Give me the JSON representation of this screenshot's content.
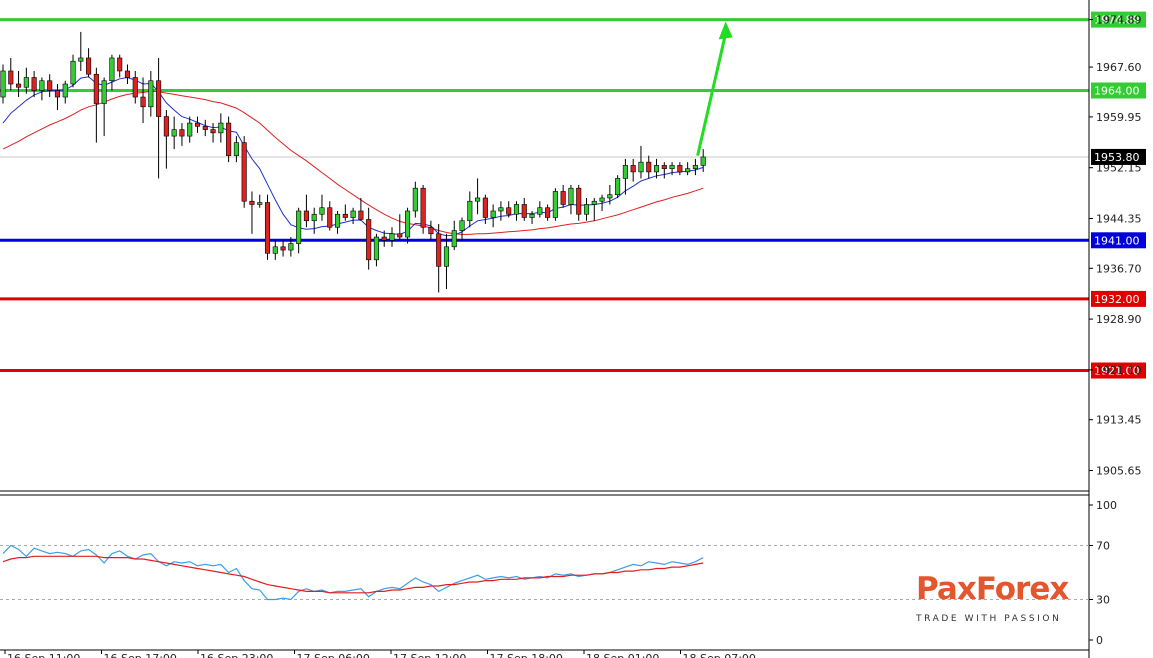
{
  "brand": {
    "name_left": "Pa",
    "name_x": "x",
    "name_right": "Forex",
    "tagline": "TRADE WITH PASSION"
  },
  "chart_data": [
    {
      "type": "candlestick",
      "ylim": [
        1902.5,
        1977.9
      ],
      "y_ticks": [
        "1974.89",
        "1967.60",
        "1959.95",
        "1952.15",
        "1944.35",
        "1936.70",
        "1928.90",
        "1921.10",
        "1913.45",
        "1905.65"
      ],
      "x_ticks": [
        "16 Sep 11:00",
        "16 Sep 17:00",
        "16 Sep 23:00",
        "17 Sep 06:00",
        "17 Sep 12:00",
        "17 Sep 18:00",
        "18 Sep 01:00",
        "18 Sep 07:00"
      ],
      "current_price": "1953.80",
      "levels": [
        {
          "value": 1974.89,
          "label": "1974.89",
          "color": "#33cc33",
          "role": "resistance"
        },
        {
          "value": 1964.0,
          "label": "1964.00",
          "color": "#33cc33",
          "role": "resistance"
        },
        {
          "value": 1941.0,
          "label": "1941.00",
          "color": "#0000dd",
          "role": "pivot"
        },
        {
          "value": 1932.0,
          "label": "1932.00",
          "color": "#e00000",
          "role": "support"
        },
        {
          "value": 1921.0,
          "label": "1921.00",
          "color": "#e00000",
          "role": "support"
        }
      ],
      "arrow": {
        "from_index": 88,
        "from_value": 1954.0,
        "to_value": 1974.0,
        "color": "#22dd22"
      },
      "candles": [
        [
          1963.0,
          1968.0,
          1962.0,
          1967.0
        ],
        [
          1967.0,
          1969.0,
          1964.0,
          1965.0
        ],
        [
          1965.0,
          1967.0,
          1963.0,
          1964.5
        ],
        [
          1964.5,
          1967.5,
          1963.5,
          1966.0
        ],
        [
          1966.0,
          1967.0,
          1963.0,
          1964.0
        ],
        [
          1964.0,
          1966.0,
          1962.5,
          1965.5
        ],
        [
          1965.5,
          1966.5,
          1963.0,
          1964.0
        ],
        [
          1964.0,
          1965.0,
          1961.0,
          1963.0
        ],
        [
          1963.0,
          1965.5,
          1962.0,
          1965.0
        ],
        [
          1965.0,
          1969.5,
          1964.5,
          1968.5
        ],
        [
          1968.5,
          1973.0,
          1967.0,
          1969.0
        ],
        [
          1969.0,
          1970.5,
          1966.0,
          1966.5
        ],
        [
          1966.5,
          1967.5,
          1956.0,
          1962.0
        ],
        [
          1962.0,
          1966.0,
          1957.0,
          1965.5
        ],
        [
          1965.5,
          1969.5,
          1964.0,
          1969.0
        ],
        [
          1969.0,
          1969.5,
          1966.0,
          1967.0
        ],
        [
          1967.0,
          1968.0,
          1965.0,
          1966.0
        ],
        [
          1966.0,
          1967.0,
          1962.0,
          1963.0
        ],
        [
          1963.0,
          1966.0,
          1959.0,
          1961.5
        ],
        [
          1961.5,
          1967.0,
          1960.0,
          1965.5
        ],
        [
          1965.5,
          1969.0,
          1950.5,
          1960.0
        ],
        [
          1960.0,
          1961.0,
          1952.0,
          1957.0
        ],
        [
          1957.0,
          1960.0,
          1955.0,
          1958.0
        ],
        [
          1958.0,
          1959.0,
          1955.5,
          1957.0
        ],
        [
          1957.0,
          1960.0,
          1956.0,
          1959.0
        ],
        [
          1959.0,
          1960.0,
          1957.5,
          1958.5
        ],
        [
          1958.5,
          1959.5,
          1957.0,
          1958.0
        ],
        [
          1958.0,
          1959.0,
          1956.0,
          1957.5
        ],
        [
          1957.5,
          1960.5,
          1956.0,
          1959.0
        ],
        [
          1959.0,
          1960.0,
          1953.0,
          1954.0
        ],
        [
          1954.0,
          1957.0,
          1953.0,
          1956.0
        ],
        [
          1956.0,
          1957.0,
          1946.0,
          1947.0
        ],
        [
          1947.0,
          1948.5,
          1942.0,
          1946.5
        ],
        [
          1946.5,
          1948.0,
          1946.0,
          1946.8
        ],
        [
          1946.8,
          1948.0,
          1938.0,
          1939.0
        ],
        [
          1939.0,
          1941.0,
          1938.0,
          1940.0
        ],
        [
          1940.0,
          1941.0,
          1938.5,
          1939.5
        ],
        [
          1939.5,
          1941.5,
          1938.5,
          1940.5
        ],
        [
          1940.5,
          1946.0,
          1939.0,
          1945.5
        ],
        [
          1945.5,
          1948.0,
          1943.0,
          1944.0
        ],
        [
          1944.0,
          1946.0,
          1942.0,
          1945.0
        ],
        [
          1945.0,
          1948.0,
          1944.0,
          1946.0
        ],
        [
          1946.0,
          1947.0,
          1942.5,
          1943.0
        ],
        [
          1943.0,
          1945.5,
          1942.0,
          1945.0
        ],
        [
          1945.0,
          1946.5,
          1944.0,
          1944.5
        ],
        [
          1944.5,
          1946.0,
          1943.5,
          1945.5
        ],
        [
          1945.5,
          1947.5,
          1944.0,
          1944.2
        ],
        [
          1944.2,
          1946.0,
          1936.5,
          1938.0
        ],
        [
          1938.0,
          1942.0,
          1937.0,
          1941.5
        ],
        [
          1941.5,
          1942.5,
          1940.0,
          1941.0
        ],
        [
          1941.0,
          1943.0,
          1940.0,
          1942.0
        ],
        [
          1942.0,
          1945.0,
          1941.0,
          1941.5
        ],
        [
          1941.5,
          1946.0,
          1940.5,
          1945.5
        ],
        [
          1945.5,
          1950.0,
          1944.5,
          1949.0
        ],
        [
          1949.0,
          1949.5,
          1942.0,
          1943.0
        ],
        [
          1943.0,
          1944.0,
          1941.0,
          1942.0
        ],
        [
          1942.0,
          1943.5,
          1933.0,
          1937.0
        ],
        [
          1937.0,
          1942.0,
          1933.5,
          1940.0
        ],
        [
          1940.0,
          1944.0,
          1939.5,
          1942.5
        ],
        [
          1942.5,
          1944.5,
          1941.0,
          1944.0
        ],
        [
          1944.0,
          1948.5,
          1943.0,
          1947.0
        ],
        [
          1947.0,
          1950.5,
          1945.0,
          1947.5
        ],
        [
          1947.5,
          1948.0,
          1943.5,
          1944.5
        ],
        [
          1944.5,
          1946.5,
          1943.0,
          1945.5
        ],
        [
          1945.5,
          1947.0,
          1944.0,
          1946.0
        ],
        [
          1946.0,
          1947.0,
          1944.5,
          1945.0
        ],
        [
          1945.0,
          1947.0,
          1944.0,
          1946.5
        ],
        [
          1946.5,
          1947.5,
          1944.0,
          1944.5
        ],
        [
          1944.5,
          1945.5,
          1943.5,
          1945.0
        ],
        [
          1945.0,
          1947.0,
          1944.5,
          1946.0
        ],
        [
          1946.0,
          1946.5,
          1944.0,
          1944.5
        ],
        [
          1944.5,
          1949.0,
          1944.0,
          1948.5
        ],
        [
          1948.5,
          1949.5,
          1946.0,
          1946.5
        ],
        [
          1946.5,
          1949.5,
          1945.0,
          1949.0
        ],
        [
          1949.0,
          1949.5,
          1944.0,
          1945.0
        ],
        [
          1945.0,
          1947.5,
          1944.0,
          1946.5
        ],
        [
          1946.5,
          1947.5,
          1944.0,
          1947.0
        ],
        [
          1947.0,
          1948.0,
          1945.5,
          1947.5
        ],
        [
          1947.5,
          1949.5,
          1946.5,
          1948.0
        ],
        [
          1948.0,
          1951.0,
          1947.5,
          1950.5
        ],
        [
          1950.5,
          1953.5,
          1948.0,
          1952.5
        ],
        [
          1952.5,
          1953.5,
          1950.0,
          1951.5
        ],
        [
          1951.5,
          1955.5,
          1950.5,
          1953.0
        ],
        [
          1953.0,
          1954.0,
          1950.5,
          1951.5
        ],
        [
          1951.5,
          1953.5,
          1950.5,
          1952.5
        ],
        [
          1952.5,
          1953.0,
          1950.5,
          1952.0
        ],
        [
          1952.0,
          1953.0,
          1951.0,
          1952.5
        ],
        [
          1952.5,
          1953.0,
          1951.0,
          1951.5
        ],
        [
          1951.5,
          1953.0,
          1951.0,
          1952.0
        ],
        [
          1952.0,
          1953.5,
          1951.0,
          1952.5
        ],
        [
          1952.5,
          1955.0,
          1951.5,
          1953.8
        ]
      ],
      "ma_fast": [
        1959.0,
        1960.5,
        1961.5,
        1962.5,
        1963.3,
        1963.8,
        1964.0,
        1964.0,
        1964.1,
        1964.8,
        1965.9,
        1966.1,
        1965.1,
        1964.8,
        1965.3,
        1965.8,
        1966.0,
        1965.6,
        1965.0,
        1965.1,
        1963.8,
        1962.1,
        1961.0,
        1960.0,
        1959.6,
        1959.1,
        1958.6,
        1958.3,
        1958.4,
        1957.8,
        1957.6,
        1955.5,
        1953.5,
        1952.0,
        1949.6,
        1947.2,
        1945.0,
        1943.4,
        1942.9,
        1942.7,
        1942.8,
        1943.1,
        1943.2,
        1943.5,
        1943.8,
        1944.1,
        1944.1,
        1943.0,
        1942.5,
        1942.1,
        1942.0,
        1941.9,
        1942.4,
        1943.6,
        1943.5,
        1943.2,
        1942.0,
        1941.7,
        1941.8,
        1942.3,
        1943.2,
        1944.0,
        1944.2,
        1944.4,
        1944.7,
        1944.8,
        1945.1,
        1945.1,
        1945.1,
        1945.3,
        1945.2,
        1945.9,
        1946.1,
        1946.5,
        1946.4,
        1946.4,
        1946.5,
        1946.7,
        1947.0,
        1947.6,
        1948.6,
        1949.3,
        1950.1,
        1950.5,
        1950.9,
        1951.1,
        1951.4,
        1951.5,
        1951.6,
        1951.8,
        1952.2
      ],
      "ma_slow": [
        1955.0,
        1955.6,
        1956.2,
        1956.9,
        1957.5,
        1958.1,
        1958.7,
        1959.2,
        1959.7,
        1960.3,
        1961.0,
        1961.5,
        1961.8,
        1962.2,
        1962.7,
        1963.1,
        1963.4,
        1963.6,
        1963.7,
        1963.9,
        1963.8,
        1963.6,
        1963.4,
        1963.2,
        1963.0,
        1962.8,
        1962.6,
        1962.3,
        1962.1,
        1961.7,
        1961.3,
        1960.6,
        1959.8,
        1959.0,
        1957.9,
        1956.8,
        1955.8,
        1954.8,
        1954.0,
        1953.2,
        1952.3,
        1951.4,
        1950.5,
        1949.6,
        1948.8,
        1948.0,
        1947.2,
        1946.4,
        1945.7,
        1945.0,
        1944.4,
        1943.9,
        1943.6,
        1943.4,
        1943.2,
        1942.9,
        1942.5,
        1942.2,
        1942.0,
        1941.9,
        1941.9,
        1942.0,
        1942.0,
        1942.1,
        1942.2,
        1942.3,
        1942.4,
        1942.5,
        1942.6,
        1942.8,
        1942.9,
        1943.1,
        1943.3,
        1943.5,
        1943.6,
        1943.8,
        1944.0,
        1944.3,
        1944.6,
        1944.9,
        1945.3,
        1945.7,
        1946.1,
        1946.5,
        1946.9,
        1947.2,
        1947.6,
        1947.9,
        1948.2,
        1948.6,
        1949.0
      ]
    },
    {
      "type": "line",
      "ylim": [
        0,
        100
      ],
      "y_ticks": [
        "100",
        "70",
        "30",
        "0"
      ],
      "reference_levels": [
        70,
        30
      ],
      "series": [
        {
          "color": "#3c9ee6",
          "values": [
            64,
            70,
            67,
            62,
            68,
            66,
            64,
            65,
            64,
            62,
            66,
            67,
            63,
            57,
            64,
            66,
            62,
            60,
            63,
            64,
            58,
            55,
            58,
            57,
            58,
            55,
            56,
            55,
            56,
            50,
            53,
            44,
            38,
            37,
            30,
            30,
            31,
            30,
            36,
            38,
            36,
            37,
            35,
            36,
            36,
            37,
            38,
            32,
            36,
            38,
            39,
            38,
            42,
            46,
            43,
            41,
            36,
            39,
            42,
            44,
            46,
            48,
            45,
            46,
            47,
            46,
            47,
            45,
            46,
            47,
            46,
            49,
            48,
            49,
            47,
            48,
            49,
            49,
            50,
            52,
            54,
            56,
            55,
            58,
            57,
            56,
            58,
            57,
            56,
            58,
            61
          ]
        },
        {
          "color": "#e02020",
          "values": [
            58,
            60,
            61,
            61,
            62,
            62,
            62,
            62,
            62,
            62,
            62,
            62,
            62,
            61,
            61,
            61,
            61,
            60,
            60,
            59,
            58,
            57,
            56,
            55,
            54,
            53,
            52,
            51,
            50,
            49,
            48,
            47,
            45,
            43,
            41,
            40,
            39,
            38,
            37,
            36,
            36,
            36,
            35,
            35,
            35,
            35,
            35,
            35,
            36,
            36,
            37,
            37,
            38,
            39,
            39,
            40,
            40,
            41,
            41,
            42,
            43,
            43,
            44,
            44,
            45,
            45,
            45,
            46,
            46,
            46,
            47,
            47,
            47,
            48,
            48,
            48,
            49,
            49,
            50,
            50,
            51,
            51,
            52,
            52,
            53,
            53,
            54,
            54,
            55,
            56,
            57
          ]
        }
      ]
    }
  ]
}
